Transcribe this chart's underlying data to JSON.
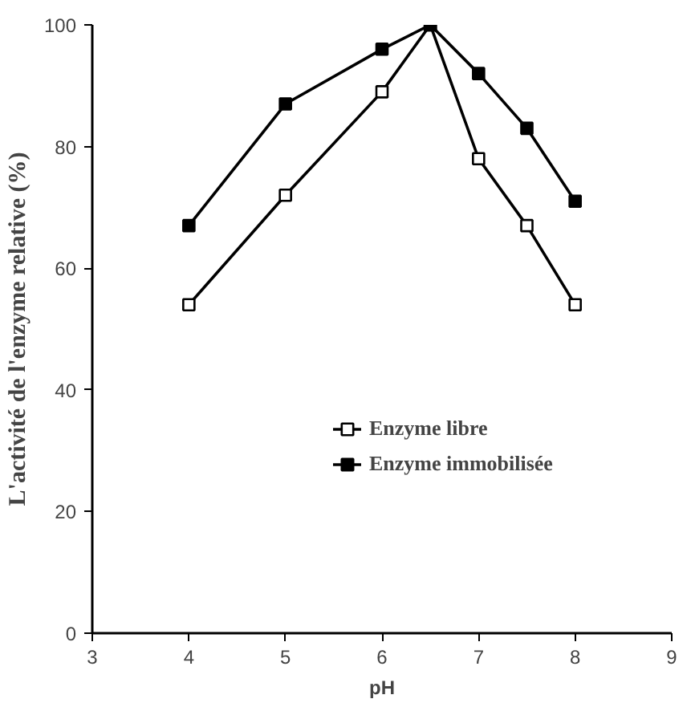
{
  "chart_data": {
    "type": "line",
    "xlabel": "pH",
    "ylabel": "L'activité de l'enzyme relative (%)",
    "x": [
      4,
      5,
      6,
      6.5,
      7,
      7.5,
      8
    ],
    "series": [
      {
        "name": "Enzyme libre",
        "color": "#000000",
        "marker": "square",
        "values": [
          54,
          72,
          89,
          100,
          78,
          67,
          54
        ]
      },
      {
        "name": "Enzyme immobilisée",
        "color": "#000000",
        "marker": "square",
        "values": [
          67,
          87,
          96,
          100,
          92,
          83,
          71
        ]
      }
    ],
    "xlim": [
      3,
      9
    ],
    "xticks": [
      3,
      4,
      5,
      6,
      7,
      8,
      9
    ],
    "ylim": [
      0,
      100
    ],
    "yticks": [
      0,
      20,
      40,
      60,
      80,
      100
    ],
    "grid": false,
    "legend": "bottom right",
    "line_style": "solid"
  }
}
